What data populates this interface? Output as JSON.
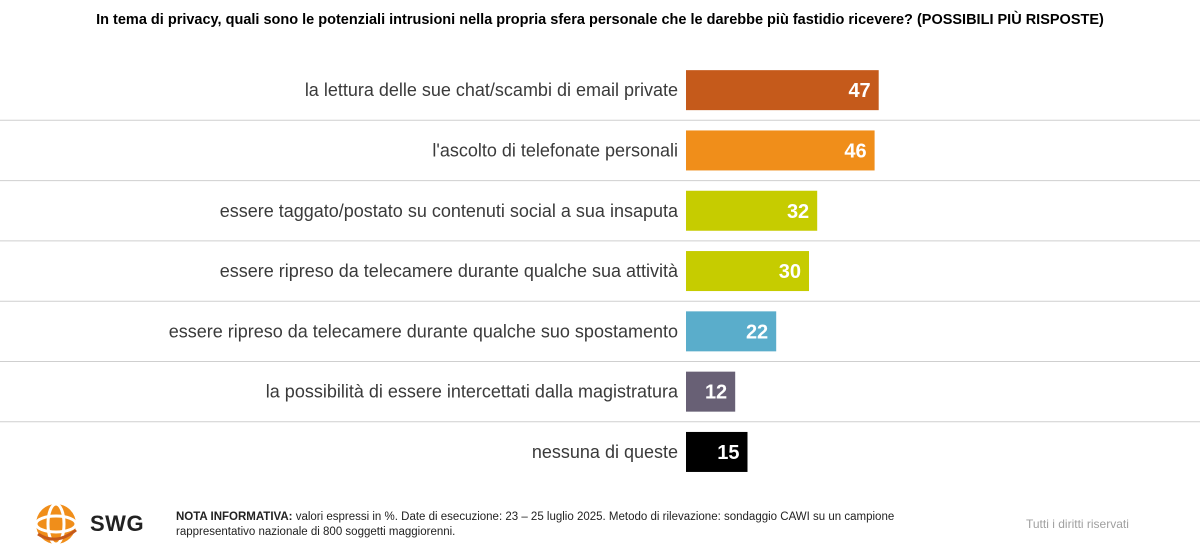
{
  "header": {
    "title": "In tema di privacy, quali sono le potenziali intrusioni nella propria sfera personale che le darebbe più fastidio ricevere? (POSSIBILI PIÙ RISPOSTE)"
  },
  "chart_data": {
    "type": "bar",
    "orientation": "horizontal",
    "title": "In tema di privacy, quali sono le potenziali intrusioni nella propria sfera personale che le darebbe più fastidio ricevere? (POSSIBILI PIÙ RISPOSTE)",
    "xlabel": "",
    "ylabel": "",
    "unit": "%",
    "xlim": [
      0,
      100
    ],
    "categories": [
      "la lettura delle sue chat/scambi di email private",
      "l'ascolto di telefonate personali",
      "essere taggato/postato su contenuti social a sua insaputa",
      "essere ripreso da telecamere durante qualche sua attività",
      "essere ripreso da telecamere durante qualche suo spostamento",
      "la possibilità di essere intercettati dalla magistratura",
      "nessuna di queste"
    ],
    "values": [
      47,
      46,
      32,
      30,
      22,
      12,
      15
    ],
    "colors": [
      "#c55a1b",
      "#f08e1a",
      "#c6cc00",
      "#c6cc00",
      "#5aadcb",
      "#686075",
      "#000000"
    ]
  },
  "footer": {
    "brand": "SWG",
    "note_label": "NOTA INFORMATIVA:",
    "note_text": "valori espressi in %. Date di esecuzione: 23 – 25 luglio 2025. Metodo di rilevazione: sondaggio CAWI su un campione rappresentativo nazionale di 800 soggetti maggiorenni.",
    "rights": "Tutti i diritti riservati"
  },
  "colors": {
    "logo_orange": "#f08e1a",
    "separator": "#cfcfcf"
  }
}
